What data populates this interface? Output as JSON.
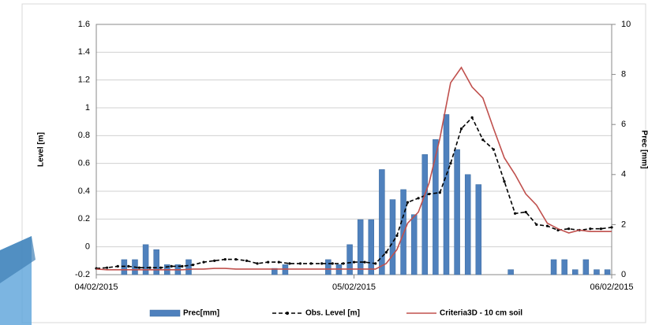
{
  "chart_data": {
    "type": "bar-line",
    "ylabel": "Level [m]",
    "y2label": "Prec [mm]",
    "categories": [
      "04/02/2015",
      null,
      null,
      null,
      null,
      null,
      null,
      null,
      null,
      null,
      null,
      null,
      null,
      null,
      null,
      null,
      null,
      null,
      null,
      null,
      null,
      null,
      null,
      null,
      "05/02/2015",
      null,
      null,
      null,
      null,
      null,
      null,
      null,
      null,
      null,
      null,
      null,
      null,
      null,
      null,
      null,
      null,
      null,
      null,
      null,
      null,
      null,
      null,
      null,
      "06/02/2015"
    ],
    "ylim": [
      -0.2,
      1.6
    ],
    "yticks": [
      -0.2,
      0,
      0.2,
      0.4,
      0.6,
      0.8,
      1,
      1.2,
      1.4,
      1.6
    ],
    "y2lim": [
      0,
      10
    ],
    "y2ticks": [
      0,
      2,
      4,
      6,
      8,
      10
    ],
    "grid": true,
    "legend": "bottom",
    "series": [
      {
        "name": "Prec[mm]",
        "type": "bar",
        "axis": "y2",
        "color": "#4f81bd",
        "values": [
          0,
          0,
          0.6,
          0.6,
          1.2,
          1.0,
          0.4,
          0.4,
          0.6,
          0,
          0,
          0,
          0,
          0,
          0,
          0,
          0.25,
          0.4,
          0,
          0,
          0,
          0.6,
          0.4,
          1.2,
          2.2,
          2.2,
          4.2,
          3.0,
          3.4,
          2.4,
          4.8,
          5.4,
          6.4,
          5.0,
          4.0,
          3.6,
          0,
          0,
          0.2,
          0,
          0,
          0,
          0.6,
          0.6,
          0.2,
          0.6,
          0.2,
          0.2,
          0
        ]
      },
      {
        "name": "Obs. Level [m]",
        "type": "line",
        "linestyle": "dashed",
        "marker": true,
        "color": "#000000",
        "values": [
          -0.155,
          -0.15,
          -0.14,
          -0.14,
          -0.15,
          -0.15,
          -0.15,
          -0.14,
          -0.14,
          -0.13,
          -0.11,
          -0.1,
          -0.09,
          -0.09,
          -0.1,
          -0.12,
          -0.11,
          -0.11,
          -0.12,
          -0.12,
          -0.12,
          -0.12,
          -0.12,
          -0.12,
          -0.11,
          -0.11,
          -0.12,
          -0.04,
          0.08,
          0.32,
          0.35,
          0.38,
          0.39,
          0.6,
          0.85,
          0.93,
          0.77,
          0.7,
          0.47,
          0.24,
          0.25,
          0.16,
          0.15,
          0.12,
          0.13,
          0.12,
          0.13,
          0.13,
          0.14
        ]
      },
      {
        "name": "Criteria3D - 10 cm soil",
        "type": "line",
        "linestyle": "solid",
        "marker": false,
        "color": "#c0504d",
        "values": [
          -0.16,
          -0.165,
          -0.165,
          -0.165,
          -0.165,
          -0.165,
          -0.165,
          -0.165,
          -0.165,
          -0.16,
          -0.16,
          -0.155,
          -0.155,
          -0.16,
          -0.16,
          -0.16,
          -0.16,
          -0.16,
          -0.16,
          -0.16,
          -0.16,
          -0.16,
          -0.16,
          -0.16,
          -0.16,
          -0.16,
          -0.16,
          -0.12,
          -0.02,
          0.17,
          0.25,
          0.46,
          0.78,
          1.18,
          1.29,
          1.15,
          1.07,
          0.85,
          0.64,
          0.52,
          0.38,
          0.3,
          0.17,
          0.13,
          0.1,
          0.12,
          0.11,
          0.11,
          0.11
        ]
      }
    ]
  }
}
